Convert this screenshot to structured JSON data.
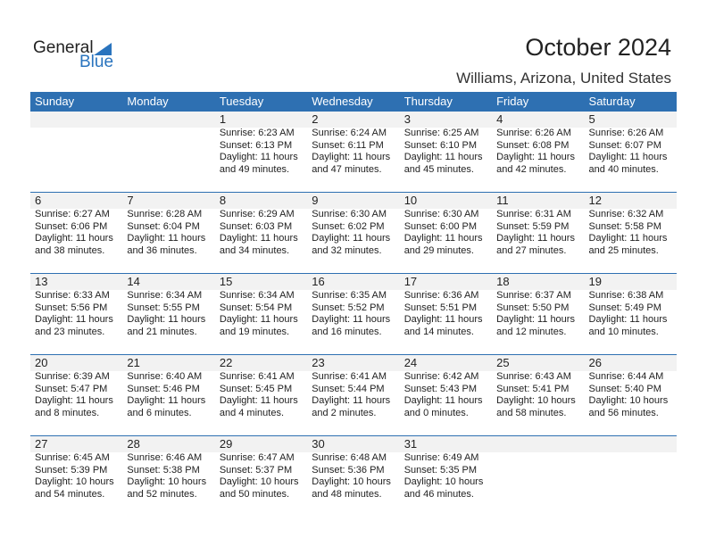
{
  "brand": {
    "line1": "General",
    "line2": "Blue",
    "accent": "#2a74be"
  },
  "title": "October 2024",
  "location": "Williams, Arizona, United States",
  "days": [
    "Sunday",
    "Monday",
    "Tuesday",
    "Wednesday",
    "Thursday",
    "Friday",
    "Saturday"
  ],
  "weeks": [
    [
      null,
      null,
      {
        "d": "1",
        "rise": "Sunrise: 6:23 AM",
        "set": "Sunset: 6:13 PM",
        "dl1": "Daylight: 11 hours",
        "dl2": "and 49 minutes."
      },
      {
        "d": "2",
        "rise": "Sunrise: 6:24 AM",
        "set": "Sunset: 6:11 PM",
        "dl1": "Daylight: 11 hours",
        "dl2": "and 47 minutes."
      },
      {
        "d": "3",
        "rise": "Sunrise: 6:25 AM",
        "set": "Sunset: 6:10 PM",
        "dl1": "Daylight: 11 hours",
        "dl2": "and 45 minutes."
      },
      {
        "d": "4",
        "rise": "Sunrise: 6:26 AM",
        "set": "Sunset: 6:08 PM",
        "dl1": "Daylight: 11 hours",
        "dl2": "and 42 minutes."
      },
      {
        "d": "5",
        "rise": "Sunrise: 6:26 AM",
        "set": "Sunset: 6:07 PM",
        "dl1": "Daylight: 11 hours",
        "dl2": "and 40 minutes."
      }
    ],
    [
      {
        "d": "6",
        "rise": "Sunrise: 6:27 AM",
        "set": "Sunset: 6:06 PM",
        "dl1": "Daylight: 11 hours",
        "dl2": "and 38 minutes."
      },
      {
        "d": "7",
        "rise": "Sunrise: 6:28 AM",
        "set": "Sunset: 6:04 PM",
        "dl1": "Daylight: 11 hours",
        "dl2": "and 36 minutes."
      },
      {
        "d": "8",
        "rise": "Sunrise: 6:29 AM",
        "set": "Sunset: 6:03 PM",
        "dl1": "Daylight: 11 hours",
        "dl2": "and 34 minutes."
      },
      {
        "d": "9",
        "rise": "Sunrise: 6:30 AM",
        "set": "Sunset: 6:02 PM",
        "dl1": "Daylight: 11 hours",
        "dl2": "and 32 minutes."
      },
      {
        "d": "10",
        "rise": "Sunrise: 6:30 AM",
        "set": "Sunset: 6:00 PM",
        "dl1": "Daylight: 11 hours",
        "dl2": "and 29 minutes."
      },
      {
        "d": "11",
        "rise": "Sunrise: 6:31 AM",
        "set": "Sunset: 5:59 PM",
        "dl1": "Daylight: 11 hours",
        "dl2": "and 27 minutes."
      },
      {
        "d": "12",
        "rise": "Sunrise: 6:32 AM",
        "set": "Sunset: 5:58 PM",
        "dl1": "Daylight: 11 hours",
        "dl2": "and 25 minutes."
      }
    ],
    [
      {
        "d": "13",
        "rise": "Sunrise: 6:33 AM",
        "set": "Sunset: 5:56 PM",
        "dl1": "Daylight: 11 hours",
        "dl2": "and 23 minutes."
      },
      {
        "d": "14",
        "rise": "Sunrise: 6:34 AM",
        "set": "Sunset: 5:55 PM",
        "dl1": "Daylight: 11 hours",
        "dl2": "and 21 minutes."
      },
      {
        "d": "15",
        "rise": "Sunrise: 6:34 AM",
        "set": "Sunset: 5:54 PM",
        "dl1": "Daylight: 11 hours",
        "dl2": "and 19 minutes."
      },
      {
        "d": "16",
        "rise": "Sunrise: 6:35 AM",
        "set": "Sunset: 5:52 PM",
        "dl1": "Daylight: 11 hours",
        "dl2": "and 16 minutes."
      },
      {
        "d": "17",
        "rise": "Sunrise: 6:36 AM",
        "set": "Sunset: 5:51 PM",
        "dl1": "Daylight: 11 hours",
        "dl2": "and 14 minutes."
      },
      {
        "d": "18",
        "rise": "Sunrise: 6:37 AM",
        "set": "Sunset: 5:50 PM",
        "dl1": "Daylight: 11 hours",
        "dl2": "and 12 minutes."
      },
      {
        "d": "19",
        "rise": "Sunrise: 6:38 AM",
        "set": "Sunset: 5:49 PM",
        "dl1": "Daylight: 11 hours",
        "dl2": "and 10 minutes."
      }
    ],
    [
      {
        "d": "20",
        "rise": "Sunrise: 6:39 AM",
        "set": "Sunset: 5:47 PM",
        "dl1": "Daylight: 11 hours",
        "dl2": "and 8 minutes."
      },
      {
        "d": "21",
        "rise": "Sunrise: 6:40 AM",
        "set": "Sunset: 5:46 PM",
        "dl1": "Daylight: 11 hours",
        "dl2": "and 6 minutes."
      },
      {
        "d": "22",
        "rise": "Sunrise: 6:41 AM",
        "set": "Sunset: 5:45 PM",
        "dl1": "Daylight: 11 hours",
        "dl2": "and 4 minutes."
      },
      {
        "d": "23",
        "rise": "Sunrise: 6:41 AM",
        "set": "Sunset: 5:44 PM",
        "dl1": "Daylight: 11 hours",
        "dl2": "and 2 minutes."
      },
      {
        "d": "24",
        "rise": "Sunrise: 6:42 AM",
        "set": "Sunset: 5:43 PM",
        "dl1": "Daylight: 11 hours",
        "dl2": "and 0 minutes."
      },
      {
        "d": "25",
        "rise": "Sunrise: 6:43 AM",
        "set": "Sunset: 5:41 PM",
        "dl1": "Daylight: 10 hours",
        "dl2": "and 58 minutes."
      },
      {
        "d": "26",
        "rise": "Sunrise: 6:44 AM",
        "set": "Sunset: 5:40 PM",
        "dl1": "Daylight: 10 hours",
        "dl2": "and 56 minutes."
      }
    ],
    [
      {
        "d": "27",
        "rise": "Sunrise: 6:45 AM",
        "set": "Sunset: 5:39 PM",
        "dl1": "Daylight: 10 hours",
        "dl2": "and 54 minutes."
      },
      {
        "d": "28",
        "rise": "Sunrise: 6:46 AM",
        "set": "Sunset: 5:38 PM",
        "dl1": "Daylight: 10 hours",
        "dl2": "and 52 minutes."
      },
      {
        "d": "29",
        "rise": "Sunrise: 6:47 AM",
        "set": "Sunset: 5:37 PM",
        "dl1": "Daylight: 10 hours",
        "dl2": "and 50 minutes."
      },
      {
        "d": "30",
        "rise": "Sunrise: 6:48 AM",
        "set": "Sunset: 5:36 PM",
        "dl1": "Daylight: 10 hours",
        "dl2": "and 48 minutes."
      },
      {
        "d": "31",
        "rise": "Sunrise: 6:49 AM",
        "set": "Sunset: 5:35 PM",
        "dl1": "Daylight: 10 hours",
        "dl2": "and 46 minutes."
      },
      null,
      null
    ]
  ]
}
